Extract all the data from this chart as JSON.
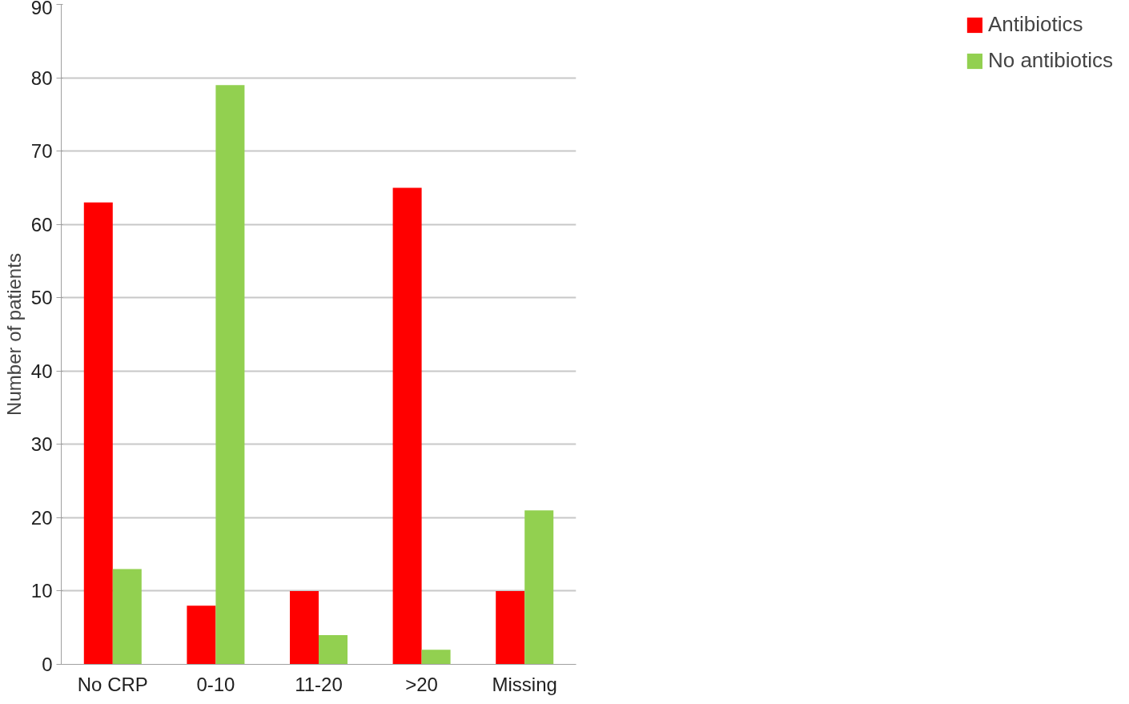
{
  "chart_data": {
    "type": "bar",
    "ylabel": "Number of patients",
    "categories": [
      "No CRP",
      "0-10",
      "11-20",
      ">20",
      "Missing"
    ],
    "series": [
      {
        "name": "Antibiotics",
        "color": "#ff0000",
        "values": [
          63,
          8,
          10,
          65,
          10
        ]
      },
      {
        "name": "No antibiotics",
        "color": "#92d050",
        "values": [
          13,
          79,
          4,
          2,
          21
        ]
      }
    ],
    "ylim": [
      0,
      90
    ],
    "yticks": [
      0,
      10,
      20,
      30,
      40,
      50,
      60,
      70,
      80,
      90
    ],
    "grid": "y",
    "legend": "right"
  }
}
